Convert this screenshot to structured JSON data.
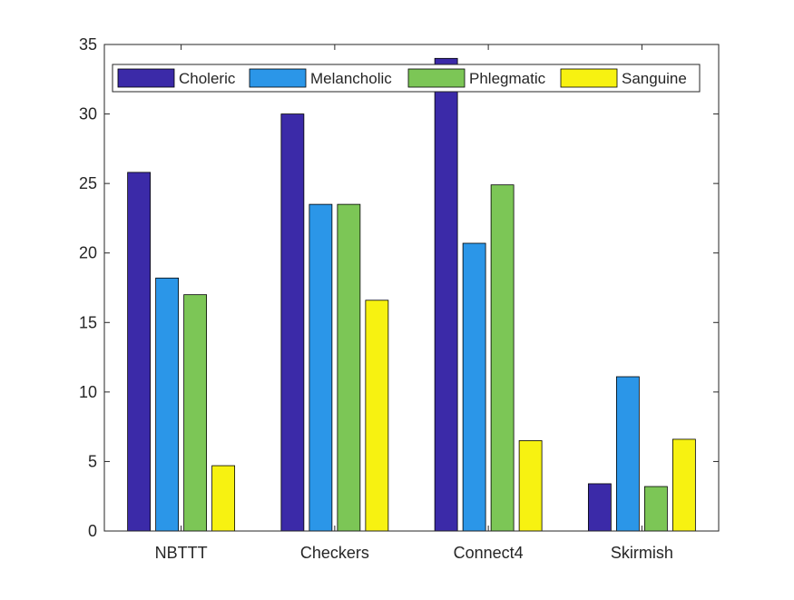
{
  "chart_data": {
    "type": "bar",
    "categories": [
      "NBTTT",
      "Checkers",
      "Connect4",
      "Skirmish"
    ],
    "series": [
      {
        "name": "Choleric",
        "color": "#3b2aa8",
        "values": [
          25.8,
          30.0,
          34.0,
          3.4
        ]
      },
      {
        "name": "Melancholic",
        "color": "#2b96e8",
        "values": [
          18.2,
          23.5,
          20.7,
          11.1
        ]
      },
      {
        "name": "Phlegmatic",
        "color": "#7cc656",
        "values": [
          17.0,
          23.5,
          24.9,
          3.2
        ]
      },
      {
        "name": "Sanguine",
        "color": "#f7f211",
        "values": [
          4.7,
          16.6,
          6.5,
          6.6
        ]
      }
    ],
    "ylim": [
      0,
      35
    ],
    "yticks": [
      0,
      5,
      10,
      15,
      20,
      25,
      30,
      35
    ],
    "legend_position": "top",
    "grid": false
  }
}
